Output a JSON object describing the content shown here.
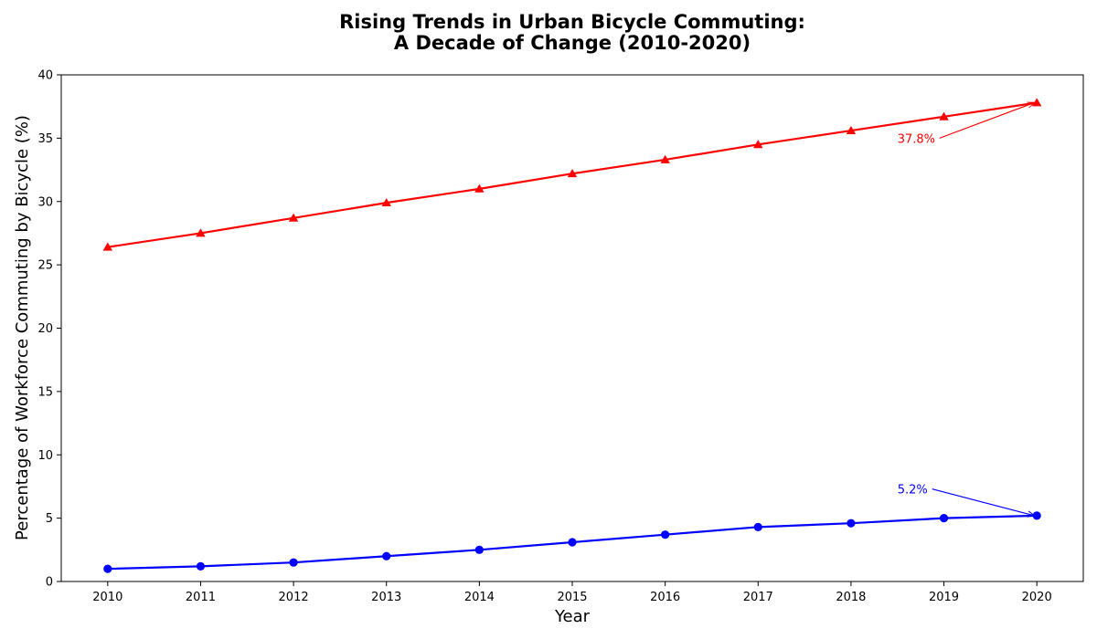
{
  "chart_data": {
    "type": "line",
    "title": "Rising Trends in Urban Bicycle Commuting:",
    "subtitle": "A Decade of Change (2010-2020)",
    "xlabel": "Year",
    "ylabel": "Percentage of Workforce Commuting by Bicycle (%)",
    "x": [
      2010,
      2011,
      2012,
      2013,
      2014,
      2015,
      2016,
      2017,
      2018,
      2019,
      2020
    ],
    "xlim": [
      2009.5,
      2020.5
    ],
    "ylim": [
      0,
      40
    ],
    "yticks": [
      0,
      5,
      10,
      15,
      20,
      25,
      30,
      35,
      40
    ],
    "grid": false,
    "series": [
      {
        "color": "#ff0000",
        "marker": "triangle",
        "values": [
          26.4,
          27.5,
          28.7,
          29.9,
          31.0,
          32.2,
          33.3,
          34.5,
          35.6,
          36.7,
          37.8
        ]
      },
      {
        "color": "#0000ff",
        "marker": "circle",
        "values": [
          1.0,
          1.2,
          1.5,
          2.0,
          2.5,
          3.1,
          3.7,
          4.3,
          4.6,
          5.0,
          5.2
        ]
      }
    ],
    "annotations": [
      {
        "text": "37.8%",
        "color": "#ff0000",
        "x": 2020,
        "y": 37.8,
        "text_x": 2018.5,
        "text_y": 35.0
      },
      {
        "text": "5.2%",
        "color": "#0000ff",
        "x": 2020,
        "y": 5.2,
        "text_x": 2018.5,
        "text_y": 7.3
      }
    ]
  }
}
